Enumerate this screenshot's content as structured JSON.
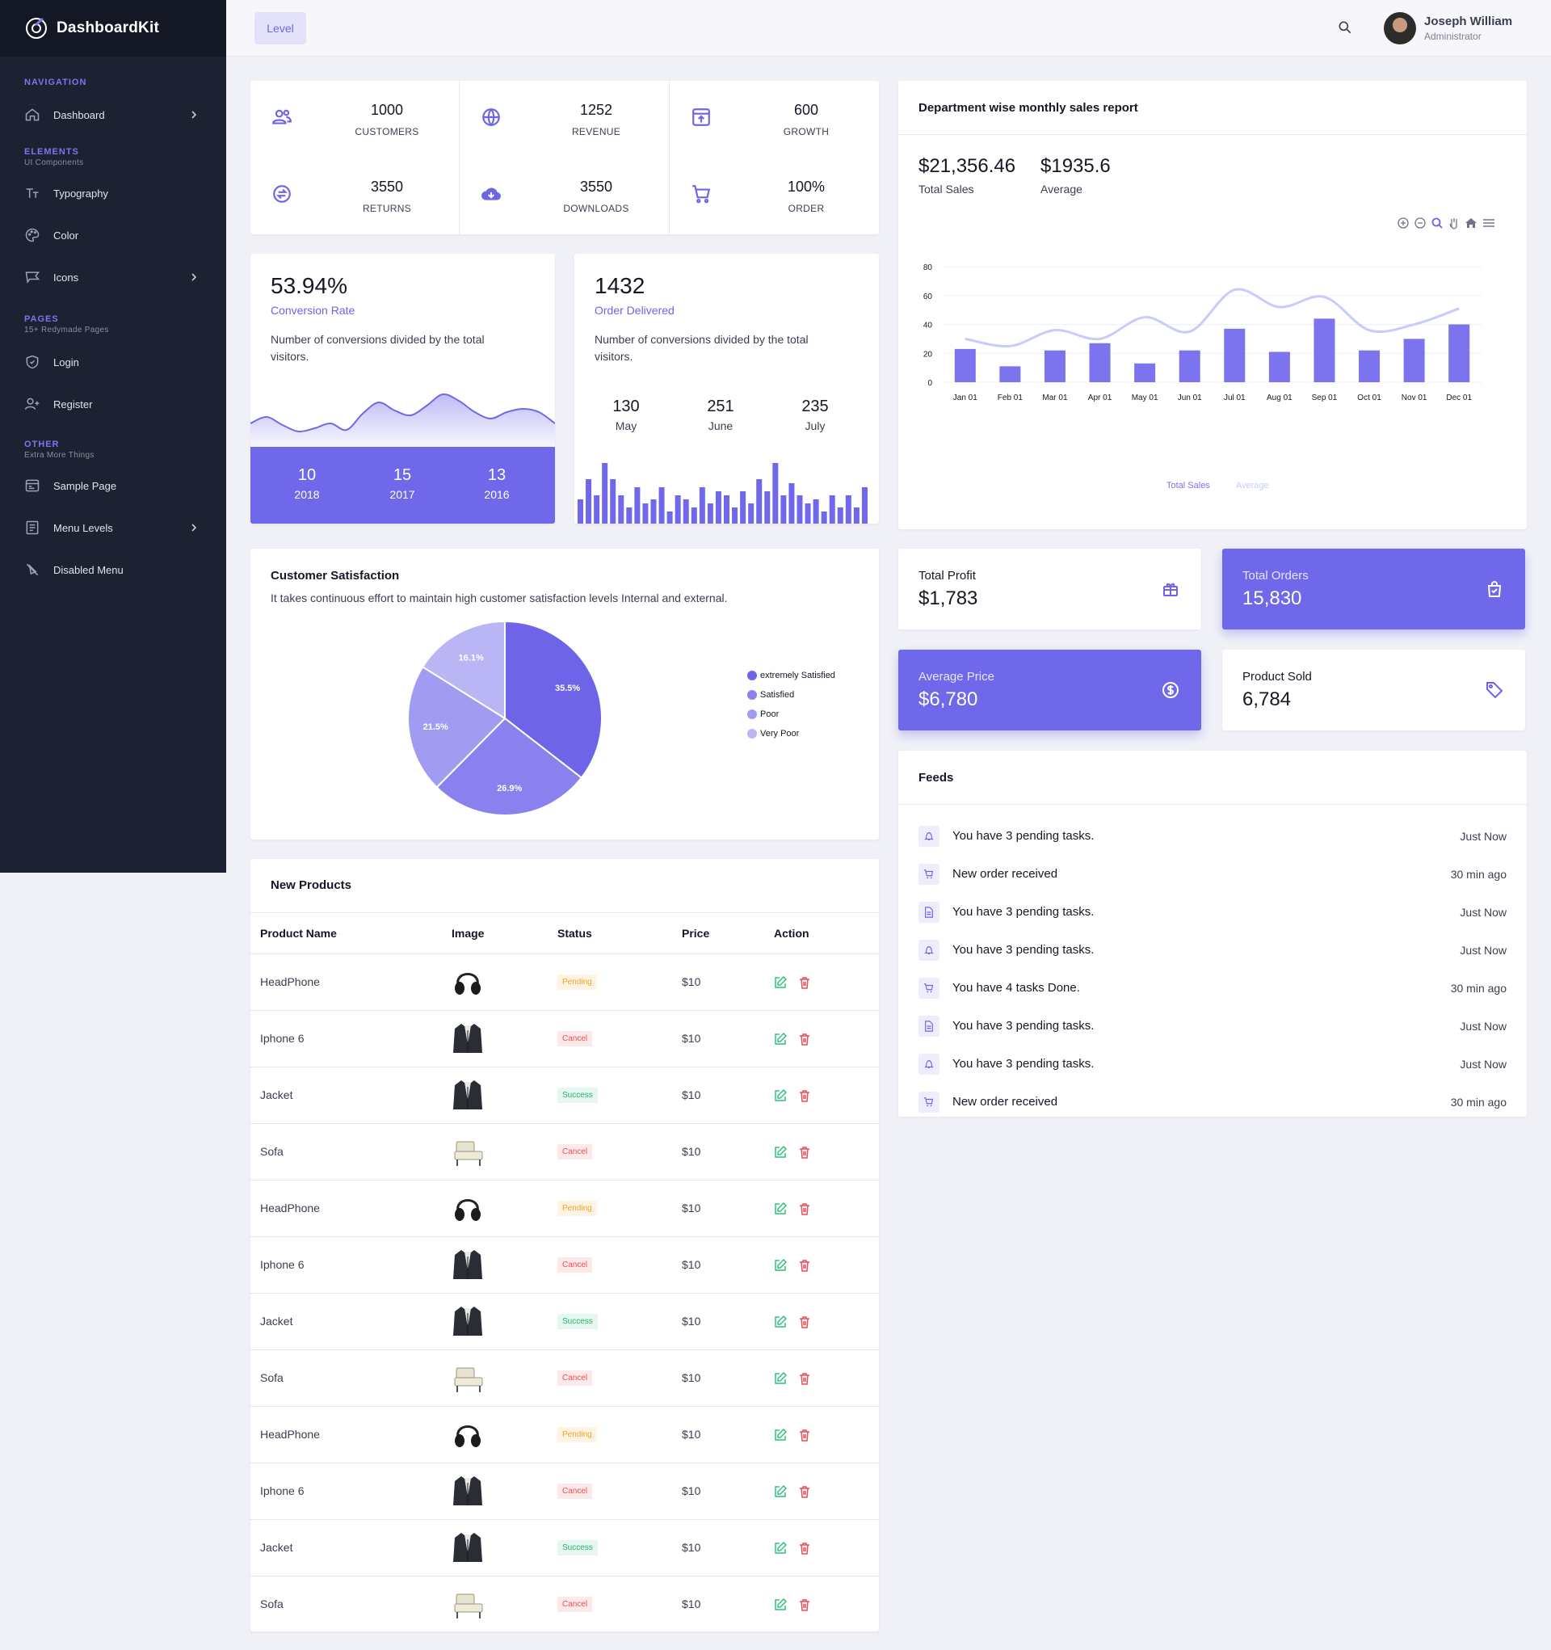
{
  "brand": {
    "name": "DashboardKit"
  },
  "nav": {
    "sections": [
      {
        "caption": "NAVIGATION",
        "sub": ""
      },
      {
        "caption": "ELEMENTS",
        "sub": "UI Components"
      },
      {
        "caption": "PAGES",
        "sub": "15+ Redymade Pages"
      },
      {
        "caption": "OTHER",
        "sub": "Extra More Things"
      }
    ],
    "items": [
      {
        "label": "Dashboard",
        "icon": "home-icon"
      },
      {
        "label": "Typography",
        "icon": "typography-icon"
      },
      {
        "label": "Color",
        "icon": "palette-icon"
      },
      {
        "label": "Icons",
        "icon": "brand-icon"
      },
      {
        "label": "Login",
        "icon": "shield-icon"
      },
      {
        "label": "Register",
        "icon": "user-plus-icon"
      },
      {
        "label": "Sample Page",
        "icon": "browser-icon"
      },
      {
        "label": "Menu Levels",
        "icon": "list-icon"
      },
      {
        "label": "Disabled Menu",
        "icon": "disabled-icon"
      }
    ]
  },
  "topbar": {
    "level_label": "Level",
    "user_name": "Joseph William",
    "user_role": "Administrator"
  },
  "stats": [
    {
      "value": "1000",
      "label": "CUSTOMERS",
      "icon": "users-icon"
    },
    {
      "value": "1252",
      "label": "REVENUE",
      "icon": "globe-icon"
    },
    {
      "value": "600",
      "label": "GROWTH",
      "icon": "archive-icon"
    },
    {
      "value": "3550",
      "label": "RETURNS",
      "icon": "exchange-icon"
    },
    {
      "value": "3550",
      "label": "DOWNLOADS",
      "icon": "cloud-download-icon"
    },
    {
      "value": "100%",
      "label": "ORDER",
      "icon": "cart-icon"
    }
  ],
  "conversion": {
    "value": "53.94%",
    "label": "Conversion Rate",
    "desc": "Number of conversions divided by the total visitors.",
    "years": [
      {
        "num": "10",
        "year": "2018"
      },
      {
        "num": "15",
        "year": "2017"
      },
      {
        "num": "13",
        "year": "2016"
      }
    ],
    "wave": [
      30,
      38,
      28,
      20,
      24,
      30,
      22,
      42,
      56,
      46,
      40,
      52,
      66,
      58,
      44,
      36,
      44,
      48,
      44,
      30
    ]
  },
  "orders": {
    "value": "1432",
    "label": "Order Delivered",
    "desc": "Number of conversions divided by the total visitors.",
    "months": [
      {
        "num": "130",
        "name": "May"
      },
      {
        "num": "251",
        "name": "June"
      },
      {
        "num": "235",
        "name": "July"
      }
    ],
    "bars": [
      30,
      55,
      35,
      75,
      55,
      35,
      20,
      45,
      25,
      30,
      45,
      15,
      35,
      30,
      20,
      45,
      25,
      40,
      35,
      20,
      40,
      25,
      55,
      40,
      75,
      35,
      50,
      35,
      25,
      30,
      15,
      35,
      20,
      35,
      20,
      45
    ]
  },
  "sales_report": {
    "title": "Department wise monthly sales report",
    "total_value": "$21,356.46",
    "total_label": "Total Sales",
    "avg_value": "$1935.6",
    "avg_label": "Average"
  },
  "chart_data": {
    "type": "bar",
    "categories": [
      "Jan 01",
      "Feb 01",
      "Mar 01",
      "Apr 01",
      "May 01",
      "Jun 01",
      "Jul 01",
      "Aug 01",
      "Sep 01",
      "Oct 01",
      "Nov 01",
      "Dec 01"
    ],
    "series": [
      {
        "name": "Total Sales",
        "type": "bar",
        "values": [
          23,
          11,
          22,
          27,
          13,
          22,
          37,
          21,
          44,
          22,
          30,
          40
        ],
        "color": "#7c73ee"
      },
      {
        "name": "Average",
        "type": "line",
        "values": [
          30,
          25,
          36,
          30,
          45,
          35,
          64,
          52,
          59,
          36,
          40,
          51
        ],
        "color": "#c7cbfd"
      }
    ],
    "ylim": [
      0,
      80
    ],
    "yticks": [
      "0",
      "20",
      "40",
      "60",
      "80"
    ],
    "grid": true,
    "legend": "bottom"
  },
  "satisfaction": {
    "title": "Customer Satisfaction",
    "desc": "It takes continuous effort to maintain high customer satisfaction levels Internal and external.",
    "pie": [
      {
        "name": "extremely Satisfied",
        "value": 35.5,
        "label": "35.5%",
        "color": "#6d64e8"
      },
      {
        "name": "Satisfied",
        "value": 26.9,
        "label": "26.9%",
        "color": "#8a81ee"
      },
      {
        "name": "Poor",
        "value": 21.5,
        "label": "21.5%",
        "color": "#a29bf2"
      },
      {
        "name": "Very Poor",
        "value": 16.1,
        "label": "16.1%",
        "color": "#bab6f5"
      }
    ]
  },
  "kpis": [
    {
      "title": "Total Profit",
      "value": "$1,783",
      "icon": "gift-icon",
      "style": "white"
    },
    {
      "title": "Total Orders",
      "value": "15,830",
      "icon": "shopping-bag-icon",
      "style": "purple"
    },
    {
      "title": "Average Price",
      "value": "$6,780",
      "icon": "dollar-icon",
      "style": "purple"
    },
    {
      "title": "Product Sold",
      "value": "6,784",
      "icon": "tag-icon",
      "style": "white"
    }
  ],
  "feeds": {
    "title": "Feeds",
    "items": [
      {
        "text": "You have 3 pending tasks.",
        "time": "Just Now",
        "icon": "bell-icon"
      },
      {
        "text": "New order received",
        "time": "30 min ago",
        "icon": "cart-icon"
      },
      {
        "text": "You have 3 pending tasks.",
        "time": "Just Now",
        "icon": "file-icon"
      },
      {
        "text": "You have 3 pending tasks.",
        "time": "Just Now",
        "icon": "bell-icon"
      },
      {
        "text": "You have 4 tasks Done.",
        "time": "30 min ago",
        "icon": "cart-icon"
      },
      {
        "text": "You have 3 pending tasks.",
        "time": "Just Now",
        "icon": "file-icon"
      },
      {
        "text": "You have 3 pending tasks.",
        "time": "Just Now",
        "icon": "bell-icon"
      },
      {
        "text": "New order received",
        "time": "30 min ago",
        "icon": "cart-icon"
      }
    ]
  },
  "products": {
    "title": "New Products",
    "columns": [
      "Product Name",
      "Image",
      "Status",
      "Price",
      "Action"
    ],
    "rows": [
      {
        "name": "HeadPhone",
        "image": "headphone",
        "status": "Pending",
        "price": "$10"
      },
      {
        "name": "Iphone 6",
        "image": "jacket",
        "status": "Cancel",
        "price": "$10"
      },
      {
        "name": "Jacket",
        "image": "jacket",
        "status": "Success",
        "price": "$10"
      },
      {
        "name": "Sofa",
        "image": "sofa",
        "status": "Cancel",
        "price": "$10"
      },
      {
        "name": "HeadPhone",
        "image": "headphone",
        "status": "Pending",
        "price": "$10"
      },
      {
        "name": "Iphone 6",
        "image": "jacket",
        "status": "Cancel",
        "price": "$10"
      },
      {
        "name": "Jacket",
        "image": "jacket",
        "status": "Success",
        "price": "$10"
      },
      {
        "name": "Sofa",
        "image": "sofa",
        "status": "Cancel",
        "price": "$10"
      },
      {
        "name": "HeadPhone",
        "image": "headphone",
        "status": "Pending",
        "price": "$10"
      },
      {
        "name": "Iphone 6",
        "image": "jacket",
        "status": "Cancel",
        "price": "$10"
      },
      {
        "name": "Jacket",
        "image": "jacket",
        "status": "Success",
        "price": "$10"
      },
      {
        "name": "Sofa",
        "image": "sofa",
        "status": "Cancel",
        "price": "$10"
      }
    ]
  }
}
